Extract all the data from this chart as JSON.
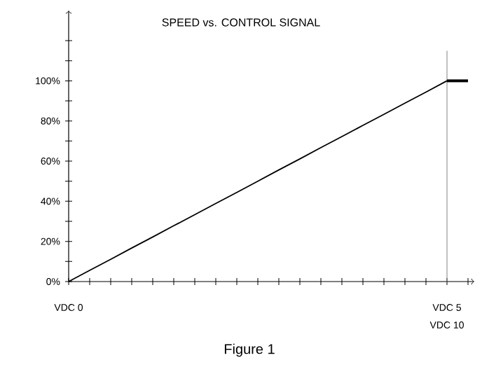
{
  "chart_data": {
    "type": "line",
    "title": "SPEED vs. CONTROL SIGNAL",
    "categories": [
      "VDC 0",
      null,
      null,
      null,
      null,
      null,
      null,
      null,
      null,
      null,
      null,
      null,
      null,
      null,
      null,
      null,
      null,
      null,
      "VDC 5",
      null
    ],
    "series": [
      {
        "color": "#000000",
        "values": [
          0,
          5.6,
          11.1,
          16.7,
          22.2,
          27.8,
          33.3,
          38.9,
          44.4,
          50,
          55.6,
          61.1,
          66.7,
          72.2,
          77.8,
          83.3,
          88.9,
          94.4,
          100,
          null
        ]
      },
      {
        "color": "#000000",
        "values": [
          null,
          null,
          null,
          null,
          null,
          null,
          null,
          null,
          null,
          null,
          null,
          null,
          null,
          null,
          null,
          null,
          null,
          null,
          100,
          100
        ]
      }
    ],
    "ylim": [
      0,
      135
    ],
    "yticks": [
      {
        "value": 0,
        "label": "0%"
      },
      {
        "value": 10,
        "label": null
      },
      {
        "value": 20,
        "label": "20%"
      },
      {
        "value": 30,
        "label": null
      },
      {
        "value": 40,
        "label": "40%"
      },
      {
        "value": 50,
        "label": null
      },
      {
        "value": 60,
        "label": "60%"
      },
      {
        "value": 70,
        "label": null
      },
      {
        "value": 80,
        "label": "80%"
      },
      {
        "value": 90,
        "label": null
      },
      {
        "value": 100,
        "label": "100%"
      },
      {
        "value": 110,
        "label": null
      },
      {
        "value": 120,
        "label": null
      }
    ],
    "annotations": [
      "VDC 10",
      "Figure 1"
    ],
    "marker": "none",
    "line_style": "solid"
  }
}
